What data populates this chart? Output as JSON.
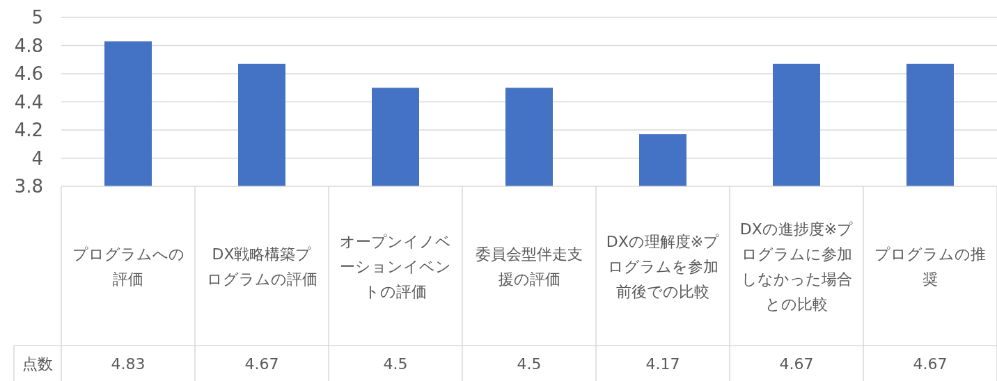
{
  "chart_data": {
    "type": "bar",
    "categories": [
      "プログラムへの評価",
      "DX戦略構築プログラムの評価",
      "オープンイノベーションイベントの評価",
      "委員会型伴走支援の評価",
      "DXの理解度※プログラムを参加前後での比較",
      "DXの進捗度※プログラムに参加しなかった場合との比較",
      "プログラムの推奨"
    ],
    "series": [
      {
        "name": "点数",
        "color": "#4472c4",
        "values": [
          4.83,
          4.67,
          4.5,
          4.5,
          4.17,
          4.67,
          4.67
        ]
      }
    ],
    "ylim": [
      3.8,
      5
    ],
    "yticks": [
      3.8,
      4,
      4.2,
      4.4,
      4.6,
      4.8,
      5
    ],
    "grid": "y",
    "data_labels": true
  }
}
